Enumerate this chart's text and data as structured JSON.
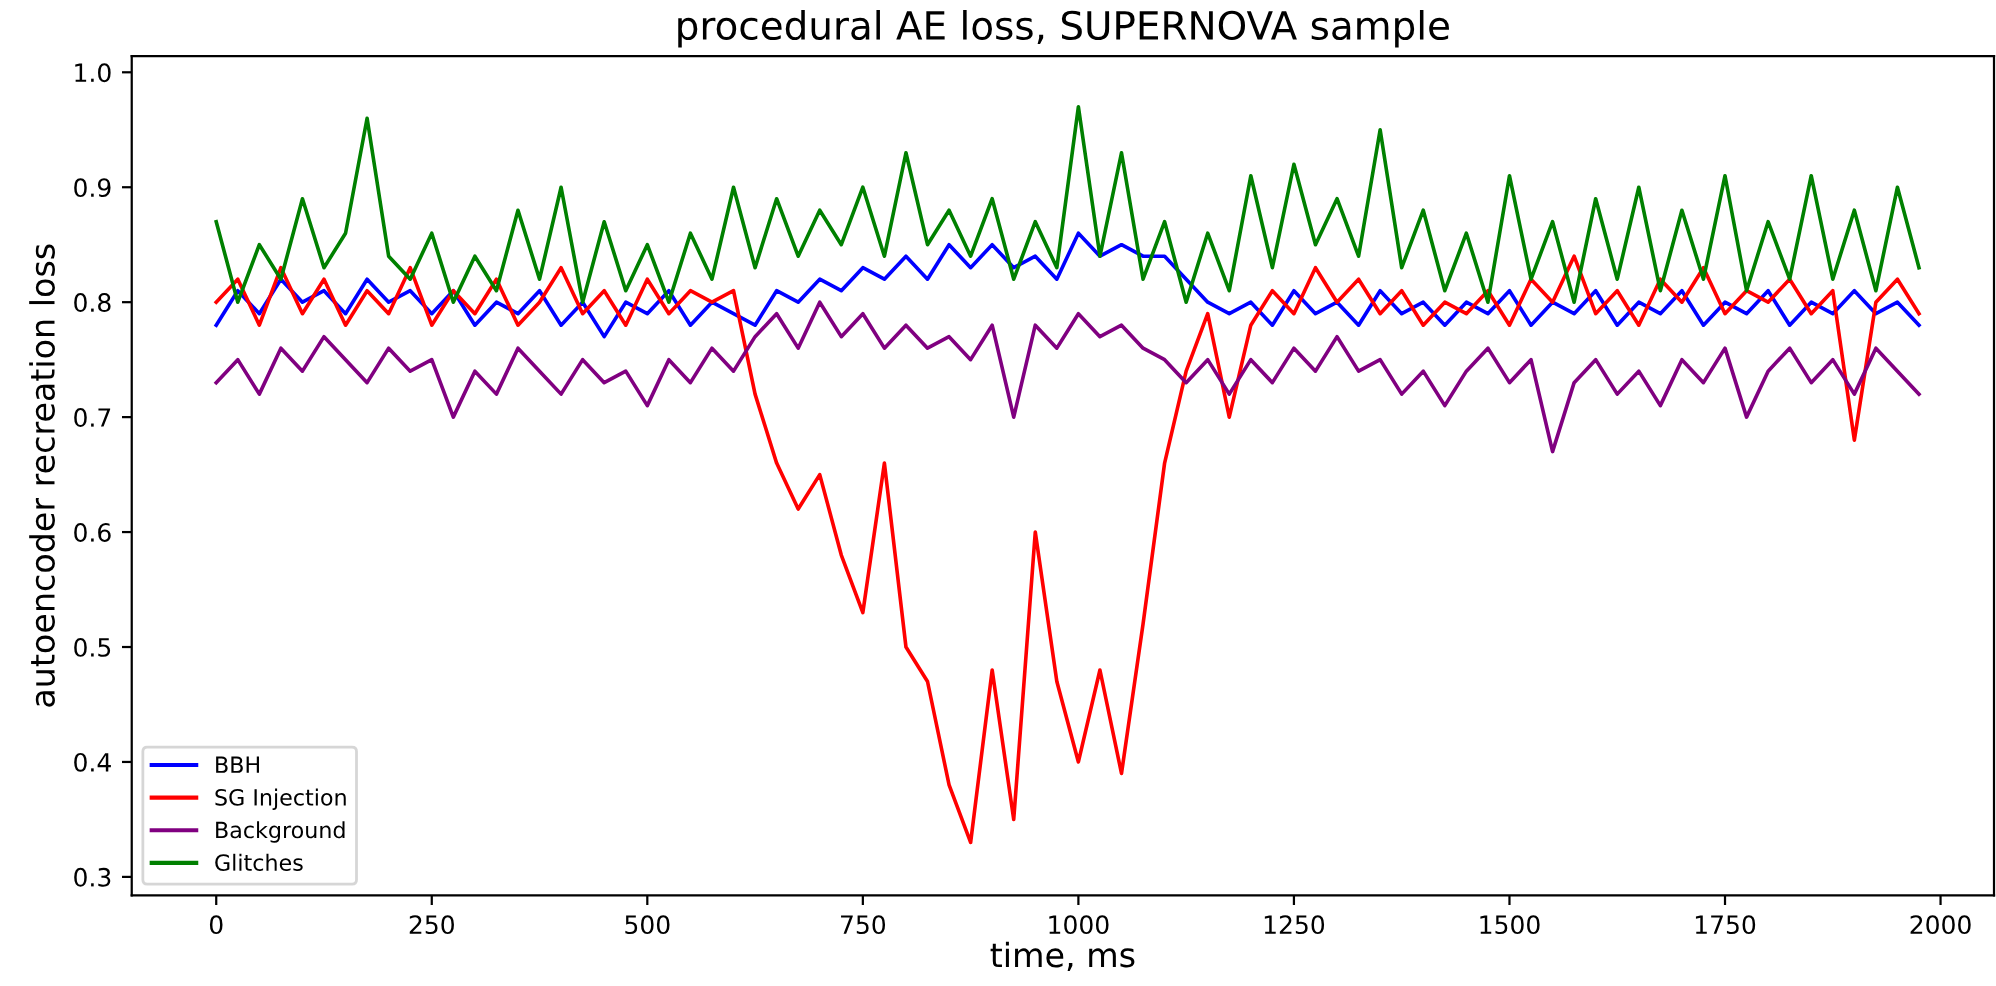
{
  "chart_data": {
    "type": "line",
    "title": "procedural AE loss, SUPERNOVA sample",
    "xlabel": "time, ms",
    "ylabel": "autoencoder recreation loss",
    "x": [
      0,
      25,
      50,
      75,
      100,
      125,
      150,
      175,
      200,
      225,
      250,
      275,
      300,
      325,
      350,
      375,
      400,
      425,
      450,
      475,
      500,
      525,
      550,
      575,
      600,
      625,
      650,
      675,
      700,
      725,
      750,
      775,
      800,
      825,
      850,
      875,
      900,
      925,
      950,
      975,
      1000,
      1025,
      1050,
      1075,
      1100,
      1125,
      1150,
      1175,
      1200,
      1225,
      1250,
      1275,
      1300,
      1325,
      1350,
      1375,
      1400,
      1425,
      1450,
      1475,
      1500,
      1525,
      1550,
      1575,
      1600,
      1625,
      1650,
      1675,
      1700,
      1725,
      1750,
      1775,
      1800,
      1825,
      1850,
      1875,
      1900,
      1925,
      1950,
      1975
    ],
    "xlim": [
      -98,
      2062
    ],
    "xticks": [
      0,
      250,
      500,
      750,
      1000,
      1250,
      1500,
      1750,
      2000
    ],
    "ylim": [
      0.284,
      1.014
    ],
    "yticks": [
      {
        "value": 0.3,
        "label": "0.3"
      },
      {
        "value": 0.4,
        "label": "0.4"
      },
      {
        "value": 0.5,
        "label": "0.5"
      },
      {
        "value": 0.6,
        "label": "0.6"
      },
      {
        "value": 0.7,
        "label": "0.7"
      },
      {
        "value": 0.8,
        "label": "0.8"
      },
      {
        "value": 0.9,
        "label": "0.9"
      },
      {
        "value": 1.0,
        "label": "1.0"
      }
    ],
    "grid": false,
    "legend": "bottom left",
    "marker": "none",
    "line_style": "solid",
    "series": [
      {
        "name": "BBH",
        "color": "#0000ff",
        "values": [
          0.78,
          0.81,
          0.79,
          0.82,
          0.8,
          0.81,
          0.79,
          0.82,
          0.8,
          0.81,
          0.79,
          0.81,
          0.78,
          0.8,
          0.79,
          0.81,
          0.78,
          0.8,
          0.77,
          0.8,
          0.79,
          0.81,
          0.78,
          0.8,
          0.79,
          0.78,
          0.81,
          0.8,
          0.82,
          0.81,
          0.83,
          0.82,
          0.84,
          0.82,
          0.85,
          0.83,
          0.85,
          0.83,
          0.84,
          0.82,
          0.86,
          0.84,
          0.85,
          0.84,
          0.84,
          0.82,
          0.8,
          0.79,
          0.8,
          0.78,
          0.81,
          0.79,
          0.8,
          0.78,
          0.81,
          0.79,
          0.8,
          0.78,
          0.8,
          0.79,
          0.81,
          0.78,
          0.8,
          0.79,
          0.81,
          0.78,
          0.8,
          0.79,
          0.81,
          0.78,
          0.8,
          0.79,
          0.81,
          0.78,
          0.8,
          0.79,
          0.81,
          0.79,
          0.8,
          0.78
        ]
      },
      {
        "name": "SG Injection",
        "color": "#ff0000",
        "values": [
          0.8,
          0.82,
          0.78,
          0.83,
          0.79,
          0.82,
          0.78,
          0.81,
          0.79,
          0.83,
          0.78,
          0.81,
          0.79,
          0.82,
          0.78,
          0.8,
          0.83,
          0.79,
          0.81,
          0.78,
          0.82,
          0.79,
          0.81,
          0.8,
          0.81,
          0.72,
          0.66,
          0.62,
          0.65,
          0.58,
          0.53,
          0.66,
          0.5,
          0.47,
          0.38,
          0.33,
          0.48,
          0.35,
          0.6,
          0.47,
          0.4,
          0.48,
          0.39,
          0.52,
          0.66,
          0.74,
          0.79,
          0.7,
          0.78,
          0.81,
          0.79,
          0.83,
          0.8,
          0.82,
          0.79,
          0.81,
          0.78,
          0.8,
          0.79,
          0.81,
          0.78,
          0.82,
          0.8,
          0.84,
          0.79,
          0.81,
          0.78,
          0.82,
          0.8,
          0.83,
          0.79,
          0.81,
          0.8,
          0.82,
          0.79,
          0.81,
          0.68,
          0.8,
          0.82,
          0.79
        ]
      },
      {
        "name": "Background",
        "color": "#800080",
        "values": [
          0.73,
          0.75,
          0.72,
          0.76,
          0.74,
          0.77,
          0.75,
          0.73,
          0.76,
          0.74,
          0.75,
          0.7,
          0.74,
          0.72,
          0.76,
          0.74,
          0.72,
          0.75,
          0.73,
          0.74,
          0.71,
          0.75,
          0.73,
          0.76,
          0.74,
          0.77,
          0.79,
          0.76,
          0.8,
          0.77,
          0.79,
          0.76,
          0.78,
          0.76,
          0.77,
          0.75,
          0.78,
          0.7,
          0.78,
          0.76,
          0.79,
          0.77,
          0.78,
          0.76,
          0.75,
          0.73,
          0.75,
          0.72,
          0.75,
          0.73,
          0.76,
          0.74,
          0.77,
          0.74,
          0.75,
          0.72,
          0.74,
          0.71,
          0.74,
          0.76,
          0.73,
          0.75,
          0.67,
          0.73,
          0.75,
          0.72,
          0.74,
          0.71,
          0.75,
          0.73,
          0.76,
          0.7,
          0.74,
          0.76,
          0.73,
          0.75,
          0.72,
          0.76,
          0.74,
          0.72
        ]
      },
      {
        "name": "Glitches",
        "color": "#008000",
        "values": [
          0.87,
          0.8,
          0.85,
          0.82,
          0.89,
          0.83,
          0.86,
          0.96,
          0.84,
          0.82,
          0.86,
          0.8,
          0.84,
          0.81,
          0.88,
          0.82,
          0.9,
          0.8,
          0.87,
          0.81,
          0.85,
          0.8,
          0.86,
          0.82,
          0.9,
          0.83,
          0.89,
          0.84,
          0.88,
          0.85,
          0.9,
          0.84,
          0.93,
          0.85,
          0.88,
          0.84,
          0.89,
          0.82,
          0.87,
          0.83,
          0.97,
          0.84,
          0.93,
          0.82,
          0.87,
          0.8,
          0.86,
          0.81,
          0.91,
          0.83,
          0.92,
          0.85,
          0.89,
          0.84,
          0.95,
          0.83,
          0.88,
          0.81,
          0.86,
          0.8,
          0.91,
          0.82,
          0.87,
          0.8,
          0.89,
          0.82,
          0.9,
          0.81,
          0.88,
          0.82,
          0.91,
          0.81,
          0.87,
          0.82,
          0.91,
          0.82,
          0.88,
          0.81,
          0.9,
          0.83
        ]
      }
    ]
  }
}
